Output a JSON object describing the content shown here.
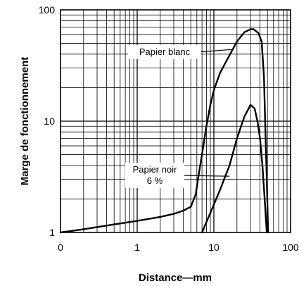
{
  "chart_data": {
    "type": "line",
    "title": "",
    "xlabel": "Distance—mm",
    "ylabel": "Marge de fonctionnement",
    "xscale": "log",
    "yscale": "log",
    "xlim": [
      0.1,
      100
    ],
    "ylim": [
      1,
      100
    ],
    "grid": true,
    "x_ticks": [
      {
        "value": 0.1,
        "label": "0"
      },
      {
        "value": 1,
        "label": "1"
      },
      {
        "value": 10,
        "label": "10"
      },
      {
        "value": 100,
        "label": "100"
      }
    ],
    "y_ticks": [
      {
        "value": 1,
        "label": "1"
      },
      {
        "value": 10,
        "label": "10"
      },
      {
        "value": 100,
        "label": "100"
      }
    ],
    "series": [
      {
        "name": "Papier blanc",
        "points": [
          [
            0.1,
            1.0
          ],
          [
            0.2,
            1.07
          ],
          [
            0.5,
            1.18
          ],
          [
            1.0,
            1.27
          ],
          [
            2.0,
            1.38
          ],
          [
            3.0,
            1.47
          ],
          [
            4.0,
            1.57
          ],
          [
            5.0,
            1.7
          ],
          [
            5.8,
            2.2
          ],
          [
            6.3,
            3.2
          ],
          [
            7.0,
            5.0
          ],
          [
            8.0,
            9.0
          ],
          [
            9.0,
            14.0
          ],
          [
            10.0,
            19.0
          ],
          [
            12.0,
            27.0
          ],
          [
            15.0,
            36.0
          ],
          [
            20.0,
            52.0
          ],
          [
            25.0,
            63.0
          ],
          [
            30.0,
            67.0
          ],
          [
            33.0,
            67.0
          ],
          [
            38.0,
            62.0
          ],
          [
            42.0,
            52.0
          ],
          [
            45.0,
            25.0
          ],
          [
            47.0,
            8.0
          ],
          [
            49.0,
            3.0
          ],
          [
            51.0,
            1.0
          ]
        ]
      },
      {
        "name": "Papier noir 6 %",
        "points": [
          [
            7.0,
            1.0
          ],
          [
            9.0,
            1.5
          ],
          [
            12.0,
            2.4
          ],
          [
            16.0,
            4.0
          ],
          [
            20.0,
            7.0
          ],
          [
            25.0,
            11.0
          ],
          [
            30.0,
            14.0
          ],
          [
            34.0,
            13.0
          ],
          [
            37.0,
            10.0
          ],
          [
            40.0,
            7.0
          ],
          [
            43.0,
            4.0
          ],
          [
            46.0,
            2.0
          ],
          [
            49.0,
            1.0
          ]
        ]
      }
    ],
    "annotations": [
      {
        "lines": [
          "Papier blanc"
        ],
        "target": [
          17.0,
          44.0
        ]
      },
      {
        "lines": [
          "Papier noir",
          "6 %"
        ],
        "target": [
          16.0,
          3.2
        ]
      }
    ]
  }
}
